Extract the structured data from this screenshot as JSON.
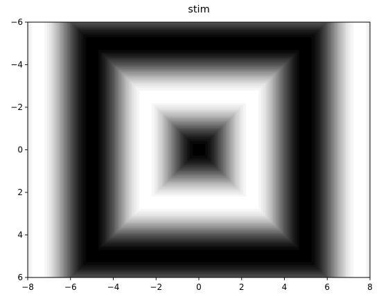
{
  "chart_data": {
    "type": "heatmap",
    "title": "stim",
    "xlabel": "",
    "ylabel": "",
    "xlim": [
      -8,
      8
    ],
    "ylim": [
      6,
      -6
    ],
    "y_inverted": true,
    "colormap": "gray",
    "filled_contours": true,
    "contour_levels": 30,
    "xticks": [
      -8,
      -6,
      -4,
      -2,
      0,
      2,
      4,
      6,
      8
    ],
    "yticks": [
      -6,
      -4,
      -2,
      0,
      2,
      4,
      6
    ],
    "xtick_labels": [
      "−8",
      "−6",
      "−4",
      "−2",
      "0",
      "2",
      "4",
      "6",
      "8"
    ],
    "ytick_labels": [
      "−6",
      "−4",
      "−2",
      "0",
      "2",
      "4",
      "6"
    ],
    "field": {
      "function": "0.5 - 0.5*cos(max(|x|,|y|) * pi/2.5)",
      "period": 5,
      "center_value": 0,
      "ring_peak_radius": 2.5,
      "ring_trough_radius": 5,
      "edge_peak_radius": 7.5
    },
    "grid": false
  }
}
